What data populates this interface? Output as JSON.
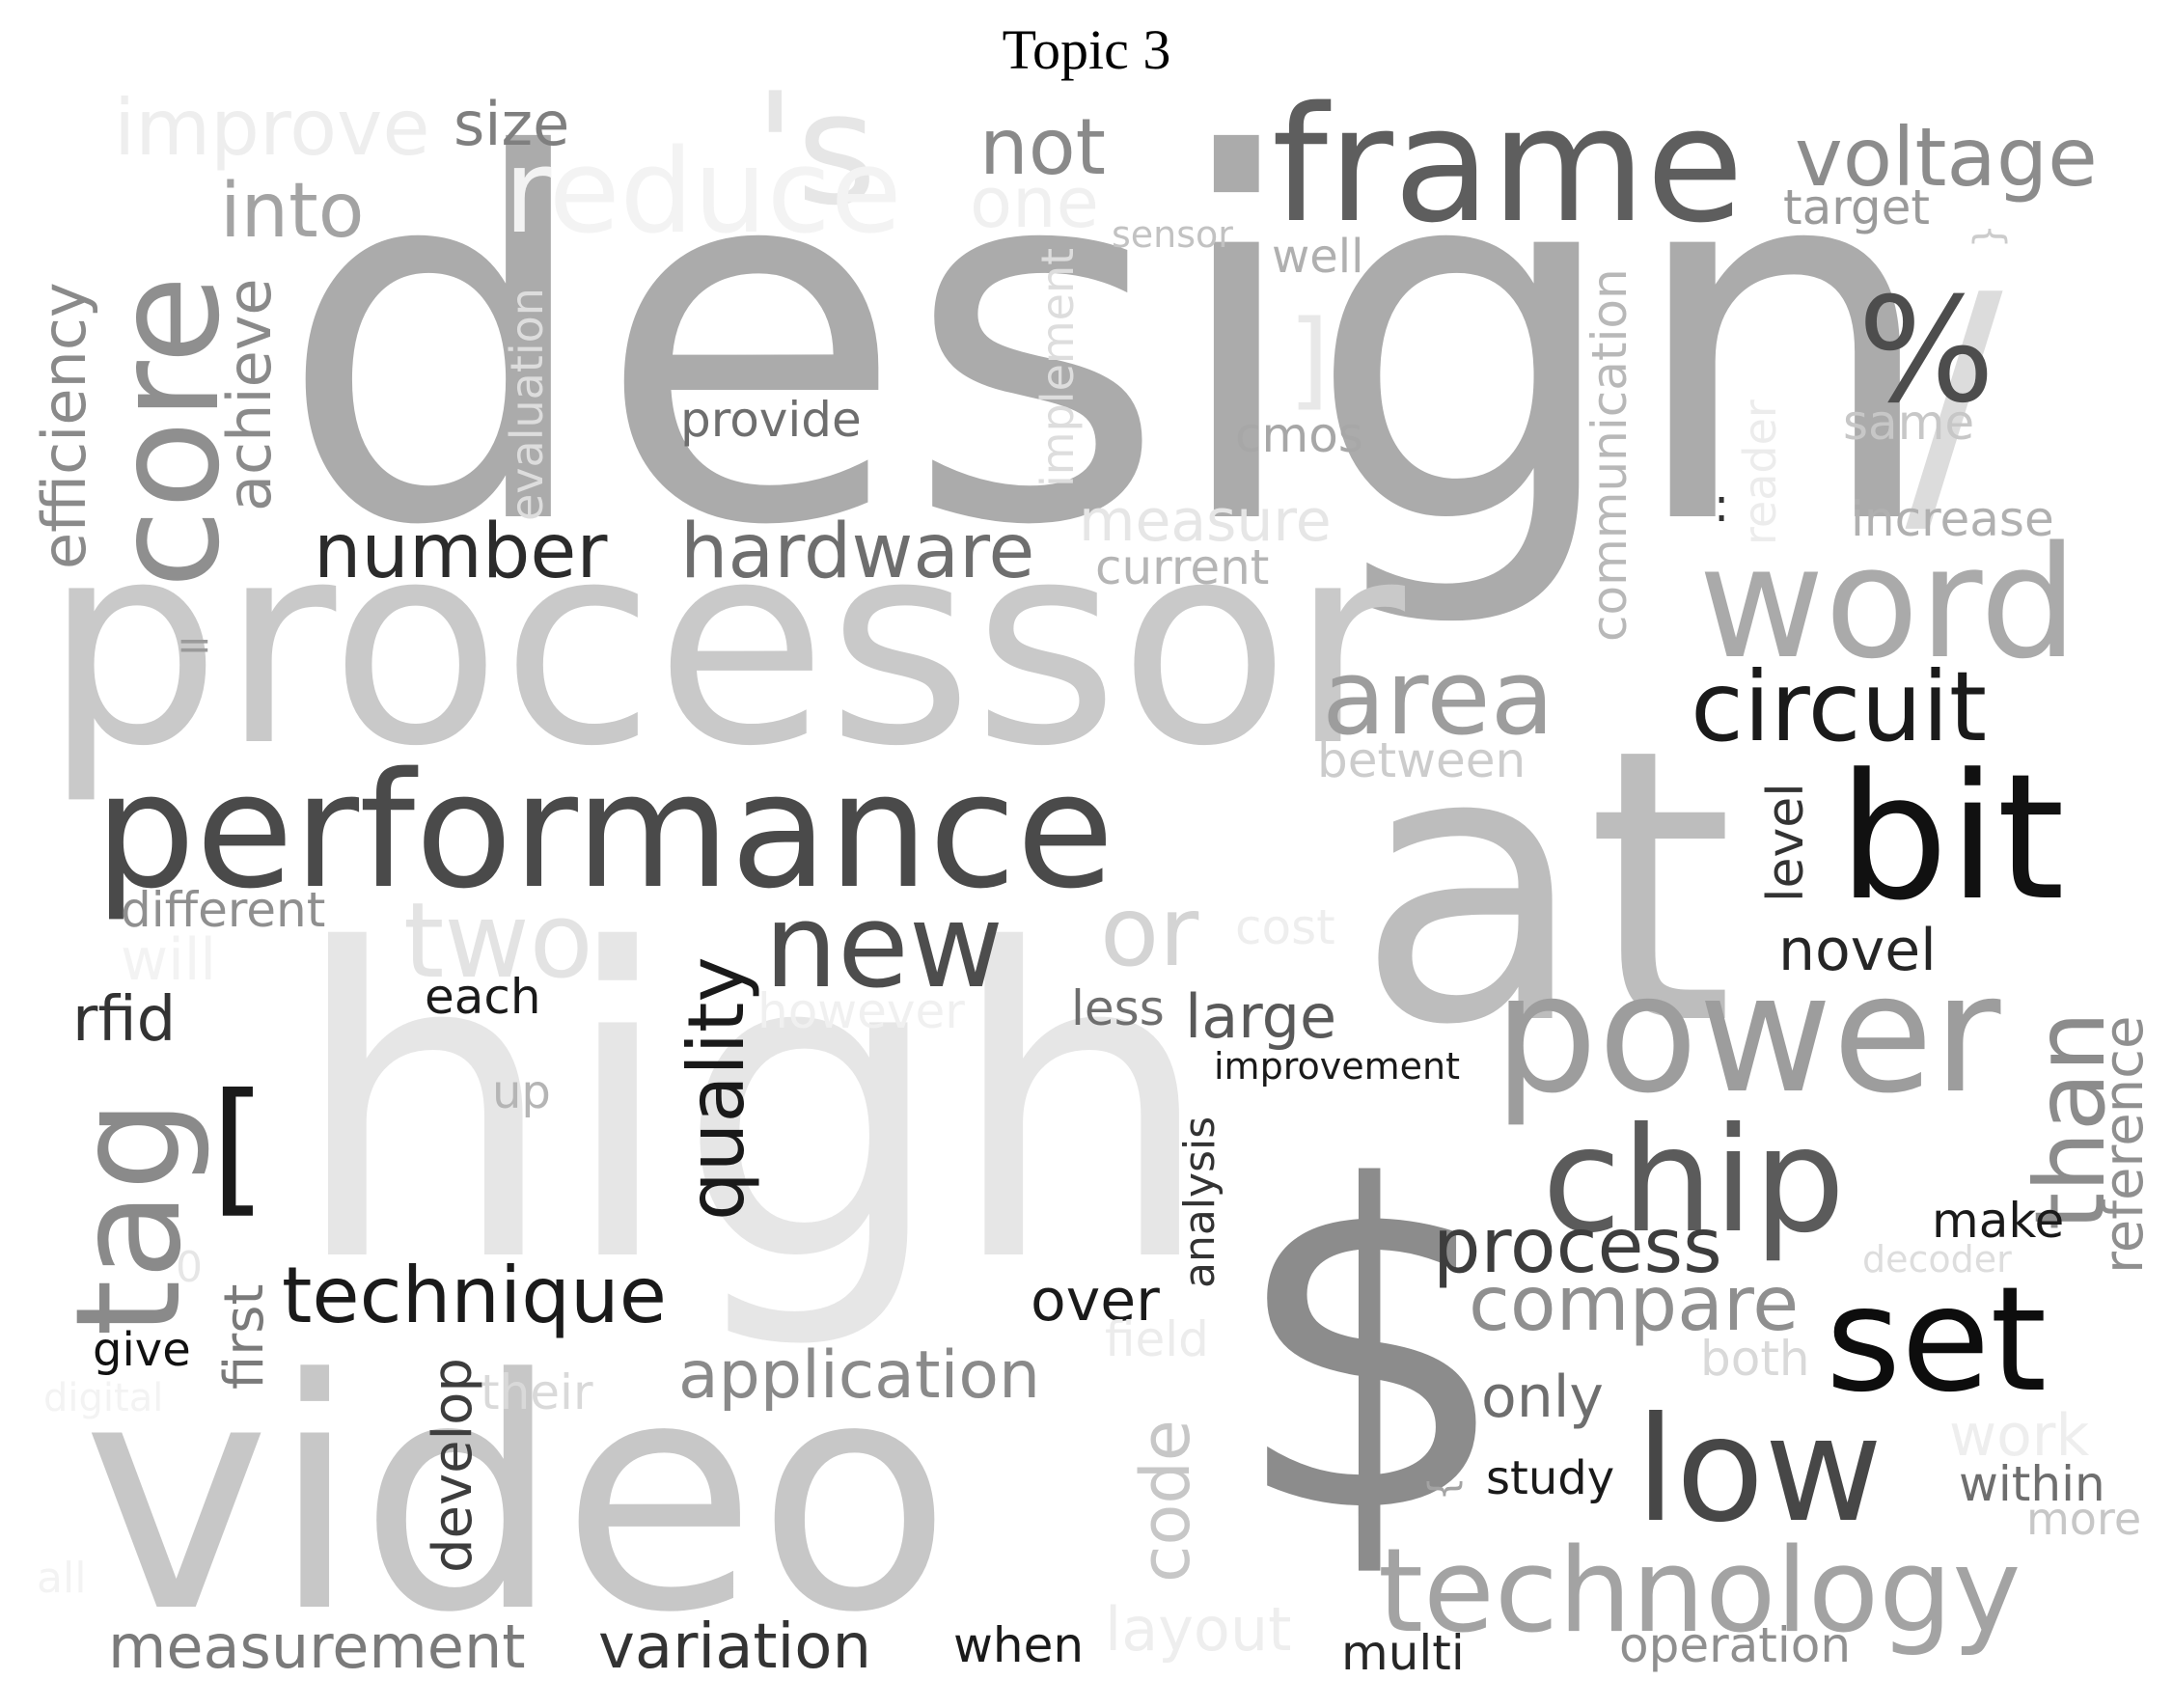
{
  "title": "Topic 3",
  "words": [
    {
      "text": "design",
      "color": "#ababab"
    },
    {
      "text": "processor",
      "color": "#c9c9c9"
    },
    {
      "text": "video",
      "color": "#c7c7c7"
    },
    {
      "text": "high",
      "color": "#e6e6e6"
    },
    {
      "text": "at",
      "color": "#bdbdbd"
    },
    {
      "text": "$",
      "color": "#8c8c8c"
    },
    {
      "text": "frame",
      "color": "#5e5e5e"
    },
    {
      "text": "performance",
      "color": "#4a4a4a"
    },
    {
      "text": "/",
      "color": "#dcdcdc"
    },
    {
      "text": "'s",
      "color": "#e6e6e6"
    },
    {
      "text": "reduce",
      "color": "#f3f3f3"
    },
    {
      "text": "improve",
      "color": "#eeeeee"
    },
    {
      "text": "size",
      "color": "#7f7f7f"
    },
    {
      "text": "not",
      "color": "#8a8a8a"
    },
    {
      "text": "one",
      "color": "#f0f0f0"
    },
    {
      "text": "voltage",
      "color": "#8c8c8c"
    },
    {
      "text": "target",
      "color": "#9a9a9a"
    },
    {
      "text": "{",
      "color": "#cccccc"
    },
    {
      "text": "core",
      "color": "#8f8f8f"
    },
    {
      "text": "into",
      "color": "#a3a3a3"
    },
    {
      "text": "efficiency",
      "color": "#8a8a8a"
    },
    {
      "text": "achieve",
      "color": "#8a8a8a"
    },
    {
      "text": "evaluation",
      "color": "#dddddd"
    },
    {
      "text": "sensor",
      "color": "#c2c2c2"
    },
    {
      "text": "well",
      "color": "#b0b0b0"
    },
    {
      "text": "implement",
      "color": "#dddddd"
    },
    {
      "text": "]",
      "color": "#e8e8e8"
    },
    {
      "text": "%",
      "color": "#4d4d4d"
    },
    {
      "text": "same",
      "color": "#c7c7c7"
    },
    {
      "text": "provide",
      "color": "#6e6e6e"
    },
    {
      "text": "cmos",
      "color": "#a7a7a7"
    },
    {
      "text": "communication",
      "color": "#b8b8b8"
    },
    {
      "text": "reader",
      "color": "#ececec"
    },
    {
      "text": ":",
      "color": "#333333"
    },
    {
      "text": "increase",
      "color": "#b0b0b0"
    },
    {
      "text": "number",
      "color": "#2b2b2b"
    },
    {
      "text": "hardware",
      "color": "#6e6e6e"
    },
    {
      "text": "measure",
      "color": "#e6e6e6"
    },
    {
      "text": "current",
      "color": "#b5b5b5"
    },
    {
      "text": "word",
      "color": "#aaaaaa"
    },
    {
      "text": "=",
      "color": "#9a9a9a"
    },
    {
      "text": "area",
      "color": "#9d9d9d"
    },
    {
      "text": "between",
      "color": "#cccccc"
    },
    {
      "text": "circuit",
      "color": "#1a1a1a"
    },
    {
      "text": "bit",
      "color": "#111111"
    },
    {
      "text": "level",
      "color": "#333333"
    },
    {
      "text": "different",
      "color": "#8f8f8f"
    },
    {
      "text": "two",
      "color": "#e3e3e3"
    },
    {
      "text": "will",
      "color": "#f3f3f3"
    },
    {
      "text": "quality",
      "color": "#1a1a1a"
    },
    {
      "text": "new",
      "color": "#4d4d4d"
    },
    {
      "text": "or",
      "color": "#d4d4d4"
    },
    {
      "text": "cost",
      "color": "#eeeeee"
    },
    {
      "text": "novel",
      "color": "#262626"
    },
    {
      "text": "than",
      "color": "#8c8c8c"
    },
    {
      "text": "reference",
      "color": "#8f8f8f"
    },
    {
      "text": "rfid",
      "color": "#333333"
    },
    {
      "text": "each",
      "color": "#1a1a1a"
    },
    {
      "text": "however",
      "color": "#f0f0f0"
    },
    {
      "text": "less",
      "color": "#6e6e6e"
    },
    {
      "text": "large",
      "color": "#595959"
    },
    {
      "text": "power",
      "color": "#9d9d9d"
    },
    {
      "text": "tag",
      "color": "#8a8a8a"
    },
    {
      "text": "[",
      "color": "#1a1a1a"
    },
    {
      "text": "up",
      "color": "#b5b5b5"
    },
    {
      "text": "improvement",
      "color": "#1a1a1a"
    },
    {
      "text": "analysis",
      "color": "#333333"
    },
    {
      "text": "chip",
      "color": "#5b5b5b"
    },
    {
      "text": "process",
      "color": "#3d3d3d"
    },
    {
      "text": "make",
      "color": "#1a1a1a"
    },
    {
      "text": "decoder",
      "color": "#dddddd"
    },
    {
      "text": "compare",
      "color": "#8f8f8f"
    },
    {
      "text": "set",
      "color": "#0d0d0d"
    },
    {
      "text": "0",
      "color": "#e6e6e6"
    },
    {
      "text": "first",
      "color": "#7a7a7a"
    },
    {
      "text": "technique",
      "color": "#1a1a1a"
    },
    {
      "text": "over",
      "color": "#1a1a1a"
    },
    {
      "text": "field",
      "color": "#ececec"
    },
    {
      "text": "both",
      "color": "#d9d9d9"
    },
    {
      "text": "give",
      "color": "#111111"
    },
    {
      "text": "develop",
      "color": "#3d3d3d"
    },
    {
      "text": "their",
      "color": "#d9d9d9"
    },
    {
      "text": "application",
      "color": "#8a8a8a"
    },
    {
      "text": "code",
      "color": "#c7c7c7"
    },
    {
      "text": "only",
      "color": "#6e6e6e"
    },
    {
      "text": "low",
      "color": "#474747"
    },
    {
      "text": "work",
      "color": "#eeeeee"
    },
    {
      "text": "within",
      "color": "#6e6e6e"
    },
    {
      "text": "more",
      "color": "#c7c7c7"
    },
    {
      "text": "digital",
      "color": "#f3f3f3"
    },
    {
      "text": "study",
      "color": "#1a1a1a"
    },
    {
      "text": "}",
      "color": "#a3a3a3"
    },
    {
      "text": "all",
      "color": "#f3f3f3"
    },
    {
      "text": "technology",
      "color": "#a3a3a3"
    },
    {
      "text": "measurement",
      "color": "#7a7a7a"
    },
    {
      "text": "variation",
      "color": "#333333"
    },
    {
      "text": "when",
      "color": "#1a1a1a"
    },
    {
      "text": "layout",
      "color": "#eeeeee"
    },
    {
      "text": "multi",
      "color": "#262626"
    },
    {
      "text": "operation",
      "color": "#8f8f8f"
    }
  ]
}
